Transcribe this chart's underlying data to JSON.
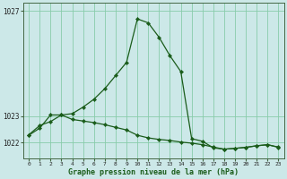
{
  "xlabel": "Graphe pression niveau de la mer (hPa)",
  "background_color": "#cce8e8",
  "grid_color": "#88ccaa",
  "line_color": "#1a5c1a",
  "ylim": [
    1021.4,
    1027.3
  ],
  "xlim": [
    -0.5,
    23.5
  ],
  "ytick_vals": [
    1022,
    1023,
    1027
  ],
  "ytick_labels": [
    "1022",
    "1023",
    "1027"
  ],
  "series1": [
    1022.3,
    1022.65,
    1022.8,
    1023.05,
    1023.1,
    1023.35,
    1023.65,
    1024.05,
    1024.55,
    1025.05,
    1026.7,
    1026.55,
    1026.0,
    1025.3,
    1024.7,
    1022.15,
    1022.05,
    1021.8,
    1021.75,
    1021.78,
    1021.82,
    1021.88,
    1021.92,
    1021.82
  ],
  "series2": [
    1022.28,
    1022.55,
    1023.05,
    1023.05,
    1022.88,
    1022.82,
    1022.76,
    1022.68,
    1022.58,
    1022.48,
    1022.28,
    1022.18,
    1022.12,
    1022.08,
    1022.02,
    1021.98,
    1021.92,
    1021.83,
    1021.75,
    1021.78,
    1021.82,
    1021.88,
    1021.92,
    1021.83
  ],
  "xtick_labels": [
    "0",
    "1",
    "2",
    "3",
    "4",
    "5",
    "6",
    "7",
    "8",
    "9",
    "10",
    "11",
    "12",
    "13",
    "14",
    "15",
    "16",
    "17",
    "18",
    "19",
    "20",
    "21",
    "22",
    "23"
  ]
}
